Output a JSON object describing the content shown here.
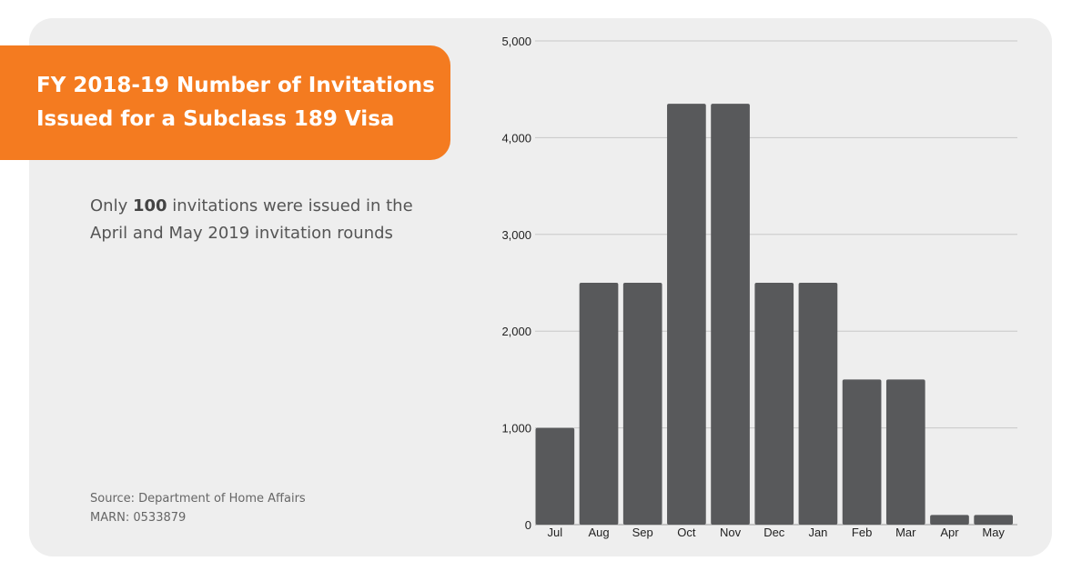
{
  "title": "FY 2018-19 Number of Invitations Issued for a Subclass 189 Visa",
  "note": {
    "prefix": "Only ",
    "highlight": "100",
    "suffix": " invitations were issued in the April and May 2019 invitation rounds"
  },
  "source": {
    "line1": "Source: Department of Home Affairs",
    "line2": "MARN: 0533879"
  },
  "colors": {
    "accent": "#f47b20",
    "bar": "#58595b",
    "grid": "#c8c8c8",
    "background": "#eeeeee"
  },
  "chart_data": {
    "type": "bar",
    "title": "FY 2018-19 Number of Invitations Issued for a Subclass 189 Visa",
    "xlabel": "",
    "ylabel": "",
    "categories": [
      "Jul",
      "Aug",
      "Sep",
      "Oct",
      "Nov",
      "Dec",
      "Jan",
      "Feb",
      "Mar",
      "Apr",
      "May"
    ],
    "values": [
      1000,
      2500,
      2500,
      4350,
      4350,
      2500,
      2500,
      1500,
      1500,
      100,
      100
    ],
    "ylim": [
      0,
      5000
    ],
    "yticks": [
      0,
      1000,
      2000,
      3000,
      4000,
      5000
    ],
    "ytick_labels": [
      "0",
      "1,000",
      "2,000",
      "3,000",
      "4,000",
      "5,000"
    ],
    "grid": true,
    "legend": "none"
  }
}
